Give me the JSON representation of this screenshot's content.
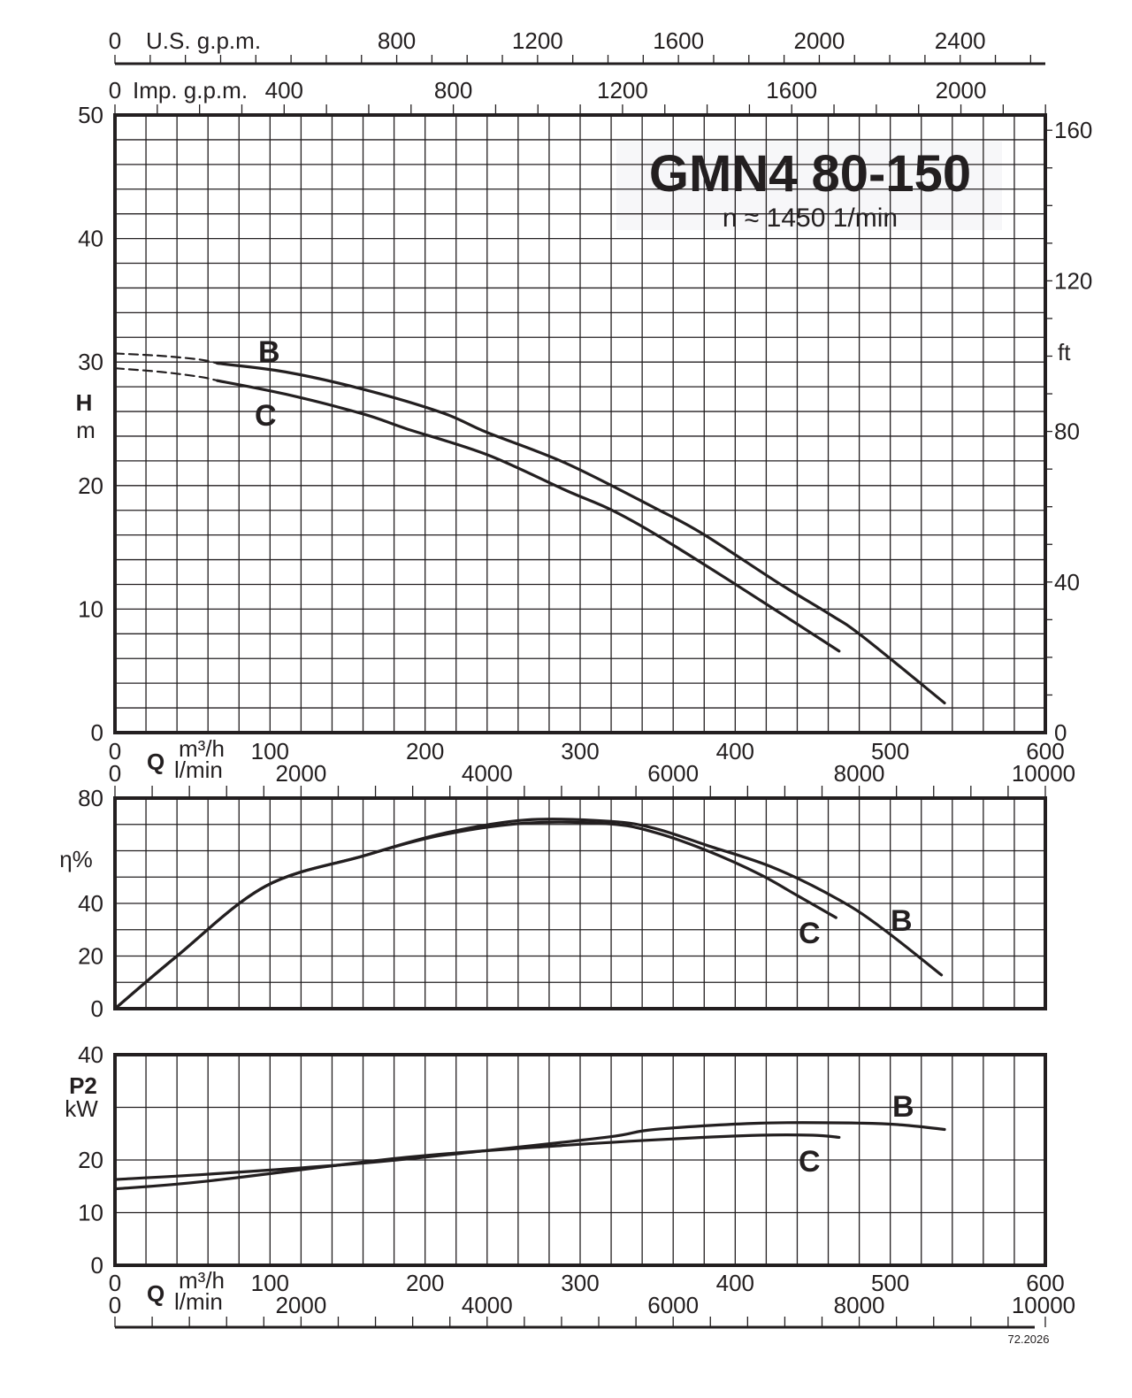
{
  "title": {
    "model": "GMN4 80-150",
    "speed": "n ≈ 1450 1/min"
  },
  "top_axes": {
    "us_gpm": {
      "label": "U.S. g.p.m.",
      "ticks": [
        "0",
        "800",
        "1200",
        "1600",
        "2000",
        "2400"
      ],
      "tick_values": [
        0,
        800,
        1200,
        1600,
        2000,
        2400
      ]
    },
    "imp_gpm": {
      "label": "Imp. g.p.m.",
      "ticks": [
        "0",
        "400",
        "800",
        "1200",
        "1600",
        "2000"
      ],
      "tick_values": [
        0,
        400,
        800,
        1200,
        1600,
        2000
      ]
    }
  },
  "q_axis": {
    "symbol": "Q",
    "unit_m3h": "m³/h",
    "unit_lmin": "l/min",
    "m3h_ticks": [
      "0",
      "100",
      "200",
      "300",
      "400",
      "500",
      "600"
    ],
    "lmin_ticks": [
      "0",
      "2000",
      "4000",
      "6000",
      "8000",
      "10000"
    ]
  },
  "footer_code": "72.2026",
  "chart_data": [
    {
      "type": "line",
      "title": "",
      "xlabel": "Q",
      "ylabel": "H",
      "yunit": "m",
      "y2label": "ft",
      "xlim": [
        0,
        600
      ],
      "ylim": [
        0,
        50
      ],
      "y2lim": [
        0,
        164
      ],
      "y_ticks": [
        "0",
        "10",
        "20",
        "30",
        "40",
        "50"
      ],
      "y2_ticks": [
        "0",
        "40",
        "80",
        "120",
        "160"
      ],
      "grid": true,
      "series": [
        {
          "name": "B",
          "extrapolated": {
            "x": [
              0,
              30,
              55,
              66
            ],
            "y": [
              30.7,
              30.5,
              30.2,
              29.9
            ]
          },
          "x": [
            66,
            110,
            160,
            211,
            240,
            291,
            348,
            379,
            428,
            462,
            482,
            535
          ],
          "y": [
            29.9,
            29.2,
            27.8,
            25.9,
            24.3,
            21.8,
            18.2,
            16.1,
            12.1,
            9.5,
            7.8,
            2.4
          ]
        },
        {
          "name": "C",
          "extrapolated": {
            "x": [
              0,
              30,
              55,
              66
            ],
            "y": [
              29.5,
              29.2,
              28.8,
              28.5
            ]
          },
          "x": [
            66,
            110,
            160,
            188,
            240,
            291,
            319,
            348,
            399,
            467
          ],
          "y": [
            28.5,
            27.4,
            25.8,
            24.6,
            22.5,
            19.6,
            18.1,
            16.1,
            12.1,
            6.6
          ]
        }
      ]
    },
    {
      "type": "line",
      "title": "",
      "ylabel": "η%",
      "xlim": [
        0,
        600
      ],
      "ylim": [
        0,
        80
      ],
      "y_ticks": [
        "0",
        "20",
        "40",
        "60",
        "80"
      ],
      "y_tick_labels_shown": [
        "0",
        "20",
        "40",
        "",
        "80"
      ],
      "grid": true,
      "series": [
        {
          "name": "B",
          "x": [
            0,
            40,
            97,
            160,
            211,
            265,
            319,
            348,
            382,
            425,
            468,
            496,
            533
          ],
          "y": [
            0,
            20,
            46.5,
            58,
            66.5,
            71.7,
            71.2,
            68.5,
            62,
            53.5,
            41,
            30,
            12.8
          ]
        },
        {
          "name": "C",
          "x": [
            0,
            40,
            97,
            160,
            211,
            265,
            319,
            348,
            382,
            416,
            440,
            465
          ],
          "y": [
            0,
            20,
            46.5,
            58,
            66,
            70.5,
            70.2,
            67,
            60,
            51,
            43,
            34.6
          ]
        }
      ]
    },
    {
      "type": "line",
      "title": "",
      "ylabel": "P2",
      "yunit": "kW",
      "xlim": [
        0,
        600
      ],
      "ylim": [
        0,
        40
      ],
      "y_ticks": [
        "0",
        "10",
        "20",
        "30",
        "40"
      ],
      "y_tick_labels_shown": [
        "0",
        "10",
        "20",
        "",
        "40"
      ],
      "grid": true,
      "series": [
        {
          "name": "B",
          "x": [
            0,
            60,
            160,
            240,
            319,
            348,
            416,
            482,
            510,
            535
          ],
          "y": [
            16.3,
            17.3,
            19.4,
            21.8,
            24.4,
            25.8,
            27.0,
            27.0,
            26.6,
            25.8
          ]
        },
        {
          "name": "C",
          "x": [
            0,
            60,
            188,
            291,
            360,
            416,
            450,
            467
          ],
          "y": [
            14.5,
            16.0,
            20.5,
            22.8,
            24.0,
            24.7,
            24.7,
            24.3
          ]
        }
      ]
    }
  ]
}
